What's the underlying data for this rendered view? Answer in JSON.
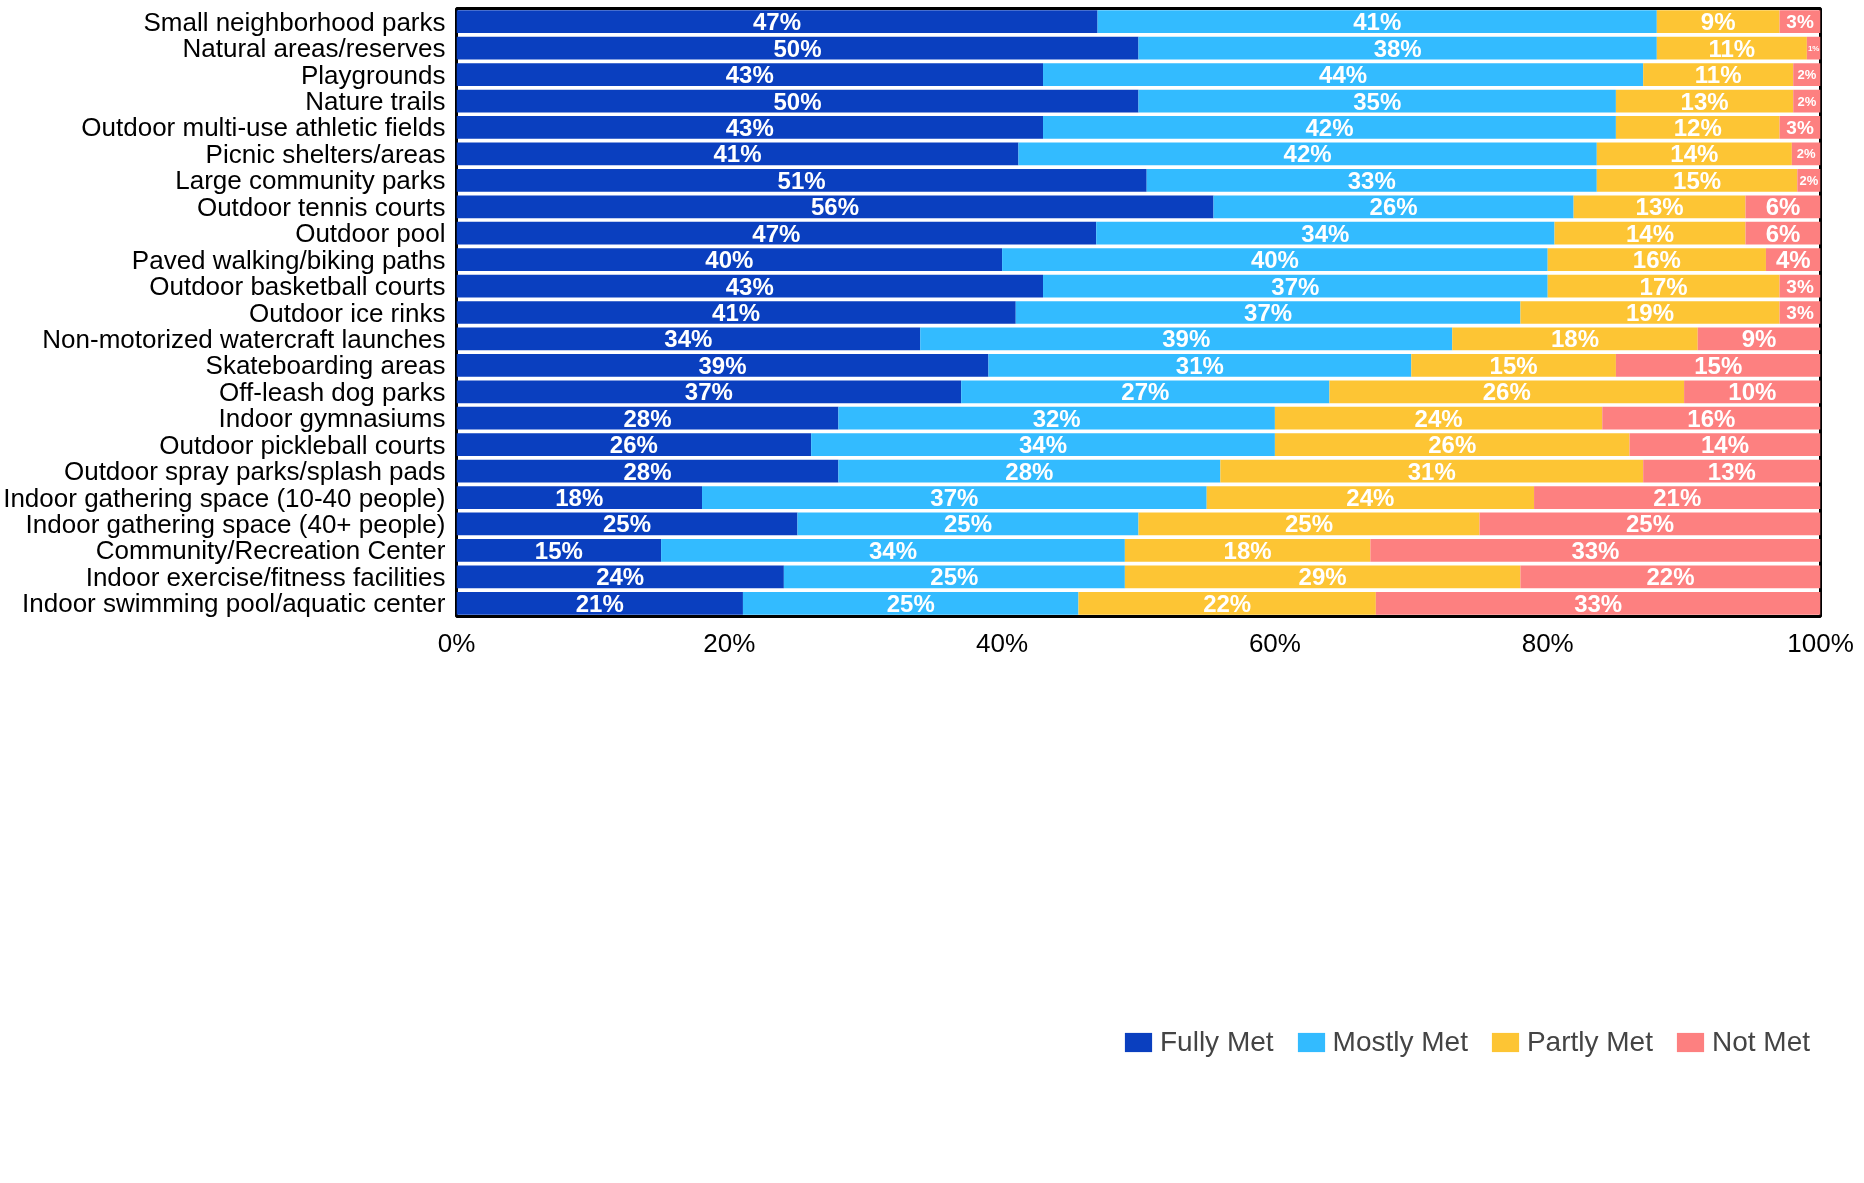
{
  "chart_data": {
    "type": "bar",
    "orientation": "horizontal",
    "stacked": true,
    "categories": [
      "Small neighborhood parks",
      "Natural areas/reserves",
      "Playgrounds",
      "Nature trails",
      "Outdoor multi-use athletic fields",
      "Picnic shelters/areas",
      "Large community parks",
      "Outdoor tennis courts",
      "Outdoor pool",
      "Paved walking/biking paths",
      "Outdoor basketball courts",
      "Outdoor ice rinks",
      "Non-motorized watercraft launches",
      "Skateboarding areas",
      "Off-leash dog parks",
      "Indoor gymnasiums",
      "Outdoor pickleball courts",
      "Outdoor spray parks/splash pads",
      "Indoor gathering space (10-40 people)",
      "Indoor gathering space (40+ people)",
      "Community/Recreation Center",
      "Indoor exercise/fitness facilities",
      "Indoor swimming pool/aquatic center"
    ],
    "series": [
      {
        "name": "Fully Met",
        "color": "#0a3fbf",
        "values": [
          47,
          50,
          43,
          50,
          43,
          41.2,
          50.6,
          55.5,
          46.9,
          40,
          43,
          41,
          34,
          39,
          37,
          28,
          26,
          28,
          18,
          25,
          15,
          24,
          21
        ],
        "value_labels": [
          "47%",
          "50%",
          "43%",
          "50%",
          "43%",
          "41%",
          "51%",
          "56%",
          "47%",
          "40%",
          "43%",
          "41%",
          "34%",
          "39%",
          "37%",
          "28%",
          "26%",
          "28%",
          "18%",
          "25%",
          "15%",
          "24%",
          "21%"
        ]
      },
      {
        "name": "Mostly Met",
        "color": "#33bbff",
        "values": [
          41,
          38,
          44,
          35,
          42,
          42.4,
          33,
          26.4,
          33.6,
          40,
          37,
          37,
          39,
          31,
          27,
          32,
          34,
          28,
          37,
          25,
          34,
          25,
          24.6
        ],
        "value_labels": [
          "41%",
          "38%",
          "44%",
          "35%",
          "42%",
          "42%",
          "33%",
          "26%",
          "34%",
          "40%",
          "37%",
          "37%",
          "39%",
          "31%",
          "27%",
          "32%",
          "34%",
          "28%",
          "37%",
          "25%",
          "34%",
          "25%",
          "25%"
        ]
      },
      {
        "name": "Partly Met",
        "color": "#fdc534",
        "values": [
          9,
          11,
          11,
          13,
          12,
          14.3,
          14.7,
          12.6,
          14,
          16,
          17,
          19,
          18,
          15,
          26,
          24,
          26,
          31,
          24,
          25,
          18,
          29,
          21.8
        ],
        "value_labels": [
          "9%",
          "11%",
          "11%",
          "13%",
          "12%",
          "14%",
          "15%",
          "13%",
          "14%",
          "16%",
          "17%",
          "19%",
          "18%",
          "15%",
          "26%",
          "24%",
          "26%",
          "31%",
          "24%",
          "25%",
          "18%",
          "29%",
          "22%"
        ]
      },
      {
        "name": "Not Met",
        "color": "#fd8080",
        "values": [
          3,
          1,
          2,
          2,
          3,
          2.1,
          1.7,
          5.5,
          5.5,
          4,
          3,
          3,
          9,
          15,
          10,
          16,
          14,
          13,
          21,
          25,
          33,
          22,
          32.6
        ],
        "value_labels": [
          "3%",
          "1%",
          "2%",
          "2%",
          "3%",
          "2%",
          "2%",
          "6%",
          "6%",
          "4%",
          "3%",
          "3%",
          "9%",
          "15%",
          "10%",
          "16%",
          "14%",
          "13%",
          "21%",
          "25%",
          "33%",
          "22%",
          "33%"
        ]
      }
    ],
    "xlim": [
      0,
      100
    ],
    "xticks": [
      {
        "value": 0,
        "label": "0%"
      },
      {
        "value": 20,
        "label": "20%"
      },
      {
        "value": 40,
        "label": "40%"
      },
      {
        "value": 60,
        "label": "60%"
      },
      {
        "value": 80,
        "label": "80%"
      },
      {
        "value": 100,
        "label": "100%"
      }
    ],
    "grid": false,
    "legend": "bottom"
  }
}
